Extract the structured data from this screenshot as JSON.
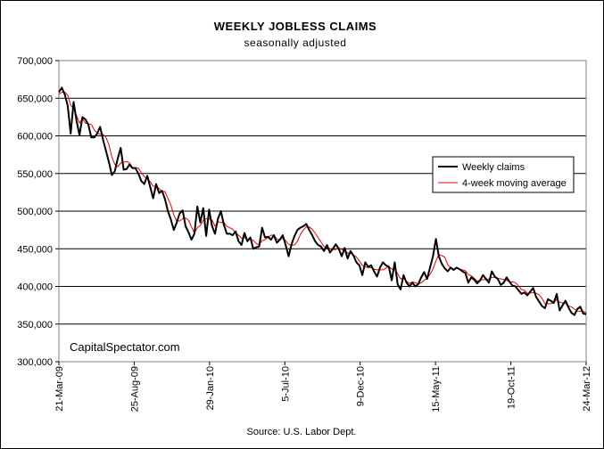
{
  "chart_data": {
    "type": "line",
    "title": "WEEKLY JOBLESS CLAIMS",
    "subtitle": "seasonally adjusted",
    "xlabel": "",
    "ylabel": "",
    "source": "Source: U.S. Labor Dept.",
    "watermark": "CapitalSpectator.com",
    "ylim": [
      300000,
      700000
    ],
    "yticks": [
      300000,
      350000,
      400000,
      450000,
      500000,
      550000,
      600000,
      650000,
      700000
    ],
    "ytick_labels": [
      "300,000",
      "350,000",
      "400,000",
      "450,000",
      "500,000",
      "550,000",
      "600,000",
      "650,000",
      "700,000"
    ],
    "xtick_labels": [
      "21-Mar-09",
      "25-Aug-09",
      "29-Jan-10",
      "5-Jul-10",
      "9-Dec-10",
      "15-May-11",
      "19-Oct-11",
      "24-Mar-12"
    ],
    "x_start": "21-Mar-09",
    "x_end": "24-Mar-12",
    "grid": "horizontal",
    "legend_position": "right",
    "series": [
      {
        "name": "Weekly claims",
        "color": "#000000",
        "values": [
          658000,
          664000,
          655000,
          640000,
          603000,
          645000,
          620000,
          601000,
          625000,
          622000,
          615000,
          598000,
          598000,
          603000,
          612000,
          595000,
          580000,
          565000,
          548000,
          553000,
          570000,
          584000,
          555000,
          556000,
          562000,
          557000,
          557000,
          550000,
          540000,
          536000,
          547000,
          532000,
          517000,
          536000,
          524000,
          527000,
          516000,
          500000,
          489000,
          475000,
          485000,
          497000,
          501000,
          480000,
          472000,
          462000,
          470000,
          506000,
          485000,
          504000,
          467000,
          502000,
          480000,
          470000,
          490000,
          500000,
          482000,
          470000,
          470000,
          468000,
          473000,
          460000,
          455000,
          471000,
          460000,
          465000,
          450000,
          452000,
          453000,
          478000,
          465000,
          466000,
          462000,
          468000,
          458000,
          462000,
          468000,
          455000,
          440000,
          456000,
          467000,
          475000,
          478000,
          480000,
          483000,
          475000,
          468000,
          460000,
          455000,
          453000,
          447000,
          455000,
          445000,
          450000,
          456000,
          450000,
          440000,
          451000,
          437000,
          447000,
          441000,
          432000,
          428000,
          415000,
          432000,
          426000,
          428000,
          420000,
          413000,
          425000,
          432000,
          428000,
          426000,
          408000,
          432000,
          403000,
          396000,
          415000,
          405000,
          400000,
          405000,
          400000,
          403000,
          412000,
          419000,
          410000,
          425000,
          440000,
          463000,
          440000,
          430000,
          424000,
          420000,
          425000,
          422000,
          425000,
          423000,
          420000,
          418000,
          405000,
          412000,
          409000,
          404000,
          408000,
          415000,
          410000,
          405000,
          420000,
          413000,
          410000,
          402000,
          405000,
          412000,
          406000,
          401000,
          400000,
          395000,
          390000,
          392000,
          388000,
          393000,
          398000,
          386000,
          380000,
          374000,
          371000,
          383000,
          381000,
          378000,
          390000,
          368000,
          375000,
          381000,
          372000,
          365000,
          362000,
          370000,
          373000,
          364000,
          363000
        ]
      },
      {
        "name": "4-week moving average",
        "color": "#e60000",
        "values": [
          655000,
          658000,
          658000,
          654000,
          641000,
          636000,
          627000,
          617000,
          623000,
          617000,
          616000,
          615000,
          608000,
          604000,
          602000,
          602000,
          598000,
          588000,
          572000,
          562000,
          559000,
          564000,
          565000,
          566000,
          564000,
          558000,
          558000,
          557000,
          551000,
          546000,
          543000,
          539000,
          533000,
          533000,
          530000,
          526000,
          526000,
          517000,
          508000,
          495000,
          487000,
          487000,
          490000,
          491000,
          488000,
          479000,
          471000,
          478000,
          481000,
          488000,
          490000,
          490000,
          488000,
          480000,
          486000,
          485000,
          485000,
          480000,
          478000,
          476000,
          471000,
          468000,
          464000,
          465000,
          462000,
          463000,
          461000,
          457000,
          455000,
          461000,
          462000,
          465000,
          468000,
          468000,
          463000,
          462000,
          464000,
          461000,
          456000,
          455000,
          455000,
          460000,
          469000,
          475000,
          479000,
          479000,
          476000,
          471000,
          465000,
          459000,
          453000,
          451000,
          450000,
          449000,
          449000,
          451000,
          449000,
          449000,
          444000,
          444000,
          442000,
          439000,
          434000,
          428000,
          426000,
          425000,
          425000,
          423000,
          422000,
          422000,
          422000,
          424000,
          427000,
          423000,
          423000,
          417000,
          410000,
          411000,
          407000,
          404000,
          406000,
          405000,
          403000,
          405000,
          408000,
          411000,
          416000,
          423000,
          434000,
          442000,
          441000,
          439000,
          429000,
          425000,
          423000,
          424000,
          423000,
          422000,
          421000,
          416000,
          414000,
          411000,
          407000,
          408000,
          409000,
          409000,
          410000,
          412000,
          412000,
          411000,
          410000,
          409000,
          408000,
          406000,
          406000,
          405000,
          401000,
          396000,
          395000,
          391000,
          391000,
          392000,
          391000,
          389000,
          384000,
          377000,
          377000,
          377000,
          378000,
          383000,
          379000,
          378000,
          378000,
          374000,
          373000,
          370000,
          367000,
          367000,
          367000,
          365000
        ]
      }
    ]
  }
}
